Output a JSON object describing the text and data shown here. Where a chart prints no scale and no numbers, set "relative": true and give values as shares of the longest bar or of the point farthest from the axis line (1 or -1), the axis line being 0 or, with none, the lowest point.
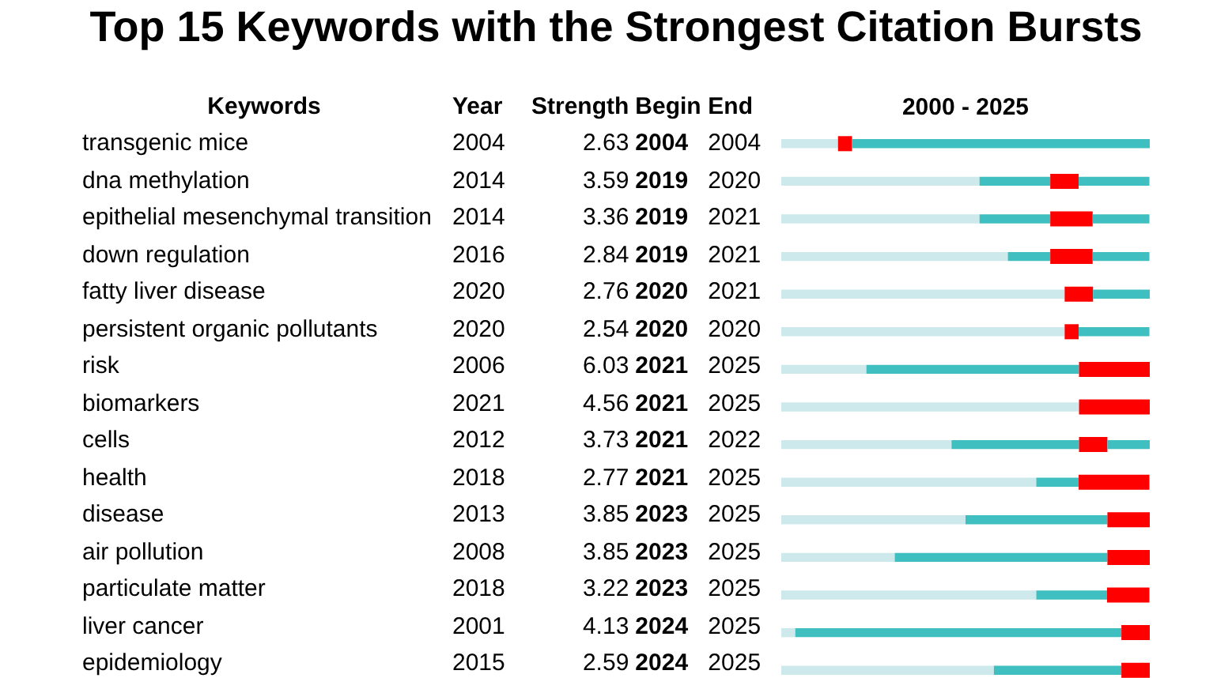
{
  "chart_data": [
    {
      "type": "heatmap",
      "title": "Top 15 Keywords with the Strongest Citation Bursts",
      "ylabel": "Keywords",
      "data_labels": true,
      "categories": [
        "Year",
        "Strength",
        "Begin",
        "End"
      ],
      "y_categories": [
        "transgenic mice",
        "dna methylation",
        "epithelial mesenchymal transition",
        "down regulation",
        "fatty liver disease",
        "persistent organic pollutants",
        "risk",
        "biomarkers",
        "cells",
        "health",
        "disease",
        "air pollution",
        "particulate matter",
        "liver cancer",
        "epidemiology"
      ],
      "cells": [
        [
          2004,
          2.63,
          2004,
          2004
        ],
        [
          2014,
          3.59,
          2019,
          2020
        ],
        [
          2014,
          3.36,
          2019,
          2021
        ],
        [
          2016,
          2.84,
          2019,
          2021
        ],
        [
          2020,
          2.76,
          2020,
          2021
        ],
        [
          2020,
          2.54,
          2020,
          2020
        ],
        [
          2006,
          6.03,
          2021,
          2025
        ],
        [
          2021,
          4.56,
          2021,
          2025
        ],
        [
          2012,
          3.73,
          2021,
          2022
        ],
        [
          2018,
          2.77,
          2021,
          2025
        ],
        [
          2013,
          3.85,
          2023,
          2025
        ],
        [
          2008,
          3.85,
          2023,
          2025
        ],
        [
          2018,
          3.22,
          2023,
          2025
        ],
        [
          2001,
          4.13,
          2024,
          2025
        ],
        [
          2015,
          2.59,
          2024,
          2025
        ]
      ]
    },
    {
      "type": "bar",
      "orientation": "horizontal",
      "stacked": true,
      "relative": true,
      "title": "2000 - 2025",
      "categories": [
        null,
        null,
        null,
        null,
        null,
        null,
        null,
        null,
        null,
        null,
        null,
        null,
        null,
        null,
        null
      ],
      "series": [
        {
          "color": "#cde9eb",
          "values": [
            0.154,
            0.538,
            0.538,
            0.615,
            0.769,
            0.769,
            0.231,
            0.808,
            0.462,
            0.692,
            0.5,
            0.308,
            0.692,
            0.038,
            0.577
          ]
        },
        {
          "color": "#3fbfc0",
          "values": [
            0,
            0.192,
            0.192,
            0.115,
            0,
            0,
            0.577,
            0,
            0.346,
            0.115,
            0.385,
            0.577,
            0.192,
            0.885,
            0.346
          ]
        },
        {
          "color": "#ff0000",
          "values": [
            0.038,
            0.077,
            0.115,
            0.115,
            0.077,
            0.038,
            0.192,
            0.192,
            0.077,
            0.192,
            0.115,
            0.115,
            0.115,
            0.077,
            0.077
          ]
        },
        {
          "color": "#3fbfc0",
          "values": [
            0.808,
            0.192,
            0.154,
            0.154,
            0.154,
            0.192,
            0,
            0,
            0.115,
            0,
            0,
            0,
            0,
            0,
            0
          ]
        }
      ]
    }
  ]
}
